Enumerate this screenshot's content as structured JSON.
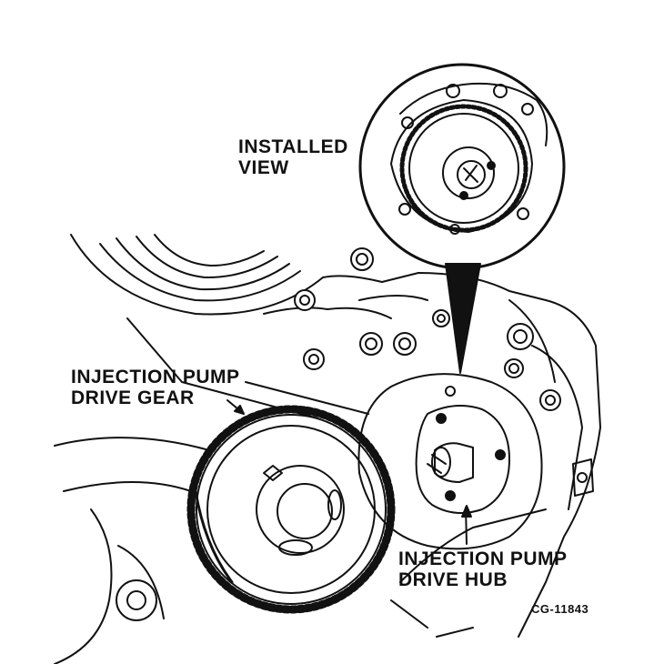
{
  "labels": {
    "installed_view_line1": "INSTALLED",
    "installed_view_line2": "VIEW",
    "drive_gear_line1": "INJECTION PUMP",
    "drive_gear_line2": "DRIVE GEAR",
    "drive_hub_line1": "INJECTION PUMP",
    "drive_hub_line2": "DRIVE HUB",
    "figure_code": "CG-11843"
  },
  "colors": {
    "ink": "#111111",
    "paper": "#ffffff"
  }
}
